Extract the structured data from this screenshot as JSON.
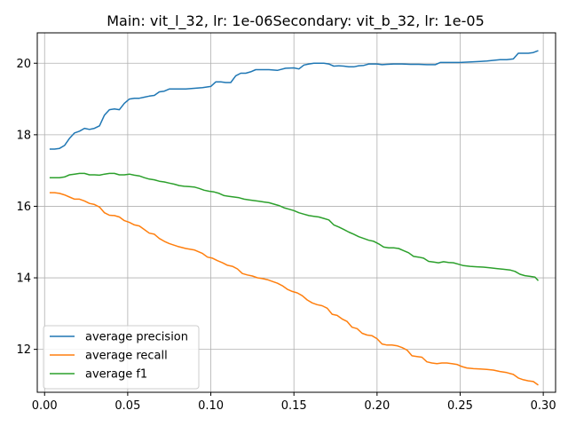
{
  "chart_data": {
    "type": "line",
    "title": "Main: vit_l_32, lr: 1e-06Secondary: vit_b_32, lr: 1e-05",
    "xlabel": "",
    "ylabel": "",
    "xlim": [
      -0.0044,
      0.3074
    ],
    "ylim": [
      10.8,
      20.85
    ],
    "xticks": [
      0.0,
      0.05,
      0.1,
      0.15,
      0.2,
      0.25,
      0.3
    ],
    "xtick_labels": [
      "0.00",
      "0.05",
      "0.10",
      "0.15",
      "0.20",
      "0.25",
      "0.30"
    ],
    "yticks": [
      12,
      14,
      16,
      18,
      20
    ],
    "ytick_labels": [
      "12",
      "14",
      "16",
      "18",
      "20"
    ],
    "grid": true,
    "legend_position": "lower-left",
    "series": [
      {
        "name": "average precision",
        "color": "#1f77b4",
        "points": [
          [
            0.003,
            17.6
          ],
          [
            0.006,
            17.6
          ],
          [
            0.009,
            17.62
          ],
          [
            0.012,
            17.7
          ],
          [
            0.015,
            17.9
          ],
          [
            0.018,
            18.05
          ],
          [
            0.021,
            18.1
          ],
          [
            0.024,
            18.18
          ],
          [
            0.027,
            18.15
          ],
          [
            0.03,
            18.18
          ],
          [
            0.033,
            18.25
          ],
          [
            0.036,
            18.55
          ],
          [
            0.039,
            18.7
          ],
          [
            0.042,
            18.72
          ],
          [
            0.045,
            18.7
          ],
          [
            0.048,
            18.88
          ],
          [
            0.051,
            19.0
          ],
          [
            0.054,
            19.02
          ],
          [
            0.057,
            19.02
          ],
          [
            0.06,
            19.05
          ],
          [
            0.063,
            19.08
          ],
          [
            0.066,
            19.1
          ],
          [
            0.069,
            19.2
          ],
          [
            0.072,
            19.22
          ],
          [
            0.075,
            19.28
          ],
          [
            0.08,
            19.28
          ],
          [
            0.085,
            19.28
          ],
          [
            0.09,
            19.3
          ],
          [
            0.095,
            19.32
          ],
          [
            0.1,
            19.35
          ],
          [
            0.103,
            19.48
          ],
          [
            0.106,
            19.48
          ],
          [
            0.109,
            19.46
          ],
          [
            0.112,
            19.46
          ],
          [
            0.115,
            19.65
          ],
          [
            0.118,
            19.72
          ],
          [
            0.121,
            19.72
          ],
          [
            0.124,
            19.76
          ],
          [
            0.127,
            19.82
          ],
          [
            0.13,
            19.82
          ],
          [
            0.135,
            19.82
          ],
          [
            0.14,
            19.8
          ],
          [
            0.145,
            19.86
          ],
          [
            0.15,
            19.87
          ],
          [
            0.153,
            19.84
          ],
          [
            0.156,
            19.95
          ],
          [
            0.159,
            19.98
          ],
          [
            0.162,
            20.0
          ],
          [
            0.165,
            20.0
          ],
          [
            0.168,
            20.0
          ],
          [
            0.171,
            19.98
          ],
          [
            0.174,
            19.92
          ],
          [
            0.177,
            19.93
          ],
          [
            0.18,
            19.92
          ],
          [
            0.183,
            19.9
          ],
          [
            0.186,
            19.9
          ],
          [
            0.189,
            19.93
          ],
          [
            0.192,
            19.94
          ],
          [
            0.195,
            19.98
          ],
          [
            0.2,
            19.98
          ],
          [
            0.203,
            19.96
          ],
          [
            0.206,
            19.97
          ],
          [
            0.21,
            19.98
          ],
          [
            0.215,
            19.98
          ],
          [
            0.22,
            19.97
          ],
          [
            0.225,
            19.97
          ],
          [
            0.23,
            19.96
          ],
          [
            0.235,
            19.96
          ],
          [
            0.238,
            20.02
          ],
          [
            0.242,
            20.02
          ],
          [
            0.246,
            20.02
          ],
          [
            0.25,
            20.02
          ],
          [
            0.254,
            20.03
          ],
          [
            0.258,
            20.04
          ],
          [
            0.262,
            20.05
          ],
          [
            0.266,
            20.06
          ],
          [
            0.27,
            20.08
          ],
          [
            0.274,
            20.1
          ],
          [
            0.278,
            20.1
          ],
          [
            0.282,
            20.12
          ],
          [
            0.285,
            20.28
          ],
          [
            0.288,
            20.28
          ],
          [
            0.291,
            20.28
          ],
          [
            0.294,
            20.3
          ],
          [
            0.297,
            20.35
          ]
        ]
      },
      {
        "name": "average recall",
        "color": "#ff7f0e",
        "points": [
          [
            0.003,
            16.38
          ],
          [
            0.006,
            16.38
          ],
          [
            0.009,
            16.36
          ],
          [
            0.012,
            16.32
          ],
          [
            0.015,
            16.26
          ],
          [
            0.018,
            16.2
          ],
          [
            0.021,
            16.2
          ],
          [
            0.024,
            16.15
          ],
          [
            0.027,
            16.08
          ],
          [
            0.03,
            16.05
          ],
          [
            0.033,
            15.98
          ],
          [
            0.036,
            15.82
          ],
          [
            0.039,
            15.75
          ],
          [
            0.042,
            15.74
          ],
          [
            0.045,
            15.7
          ],
          [
            0.048,
            15.6
          ],
          [
            0.051,
            15.55
          ],
          [
            0.054,
            15.48
          ],
          [
            0.057,
            15.45
          ],
          [
            0.06,
            15.35
          ],
          [
            0.063,
            15.25
          ],
          [
            0.066,
            15.22
          ],
          [
            0.069,
            15.1
          ],
          [
            0.072,
            15.02
          ],
          [
            0.075,
            14.96
          ],
          [
            0.08,
            14.88
          ],
          [
            0.085,
            14.82
          ],
          [
            0.09,
            14.78
          ],
          [
            0.095,
            14.68
          ],
          [
            0.098,
            14.58
          ],
          [
            0.101,
            14.55
          ],
          [
            0.104,
            14.48
          ],
          [
            0.107,
            14.42
          ],
          [
            0.11,
            14.35
          ],
          [
            0.113,
            14.32
          ],
          [
            0.116,
            14.25
          ],
          [
            0.119,
            14.12
          ],
          [
            0.122,
            14.08
          ],
          [
            0.125,
            14.05
          ],
          [
            0.128,
            14.0
          ],
          [
            0.131,
            13.98
          ],
          [
            0.134,
            13.95
          ],
          [
            0.137,
            13.9
          ],
          [
            0.14,
            13.85
          ],
          [
            0.143,
            13.78
          ],
          [
            0.146,
            13.68
          ],
          [
            0.149,
            13.62
          ],
          [
            0.152,
            13.58
          ],
          [
            0.155,
            13.5
          ],
          [
            0.158,
            13.38
          ],
          [
            0.161,
            13.3
          ],
          [
            0.164,
            13.25
          ],
          [
            0.167,
            13.22
          ],
          [
            0.17,
            13.15
          ],
          [
            0.173,
            12.98
          ],
          [
            0.176,
            12.95
          ],
          [
            0.179,
            12.85
          ],
          [
            0.182,
            12.78
          ],
          [
            0.185,
            12.62
          ],
          [
            0.188,
            12.58
          ],
          [
            0.191,
            12.45
          ],
          [
            0.194,
            12.4
          ],
          [
            0.197,
            12.38
          ],
          [
            0.2,
            12.3
          ],
          [
            0.203,
            12.15
          ],
          [
            0.206,
            12.12
          ],
          [
            0.209,
            12.12
          ],
          [
            0.212,
            12.1
          ],
          [
            0.215,
            12.05
          ],
          [
            0.218,
            11.98
          ],
          [
            0.221,
            11.82
          ],
          [
            0.224,
            11.8
          ],
          [
            0.227,
            11.78
          ],
          [
            0.23,
            11.65
          ],
          [
            0.233,
            11.62
          ],
          [
            0.236,
            11.6
          ],
          [
            0.239,
            11.62
          ],
          [
            0.242,
            11.62
          ],
          [
            0.245,
            11.6
          ],
          [
            0.248,
            11.58
          ],
          [
            0.251,
            11.52
          ],
          [
            0.254,
            11.48
          ],
          [
            0.258,
            11.46
          ],
          [
            0.262,
            11.45
          ],
          [
            0.266,
            11.44
          ],
          [
            0.27,
            11.42
          ],
          [
            0.274,
            11.38
          ],
          [
            0.278,
            11.35
          ],
          [
            0.282,
            11.3
          ],
          [
            0.285,
            11.2
          ],
          [
            0.288,
            11.15
          ],
          [
            0.291,
            11.12
          ],
          [
            0.294,
            11.1
          ],
          [
            0.297,
            11.0
          ]
        ]
      },
      {
        "name": "average f1",
        "color": "#2ca02c",
        "points": [
          [
            0.003,
            16.8
          ],
          [
            0.006,
            16.8
          ],
          [
            0.009,
            16.8
          ],
          [
            0.012,
            16.82
          ],
          [
            0.015,
            16.88
          ],
          [
            0.018,
            16.9
          ],
          [
            0.021,
            16.92
          ],
          [
            0.024,
            16.92
          ],
          [
            0.027,
            16.88
          ],
          [
            0.03,
            16.88
          ],
          [
            0.033,
            16.87
          ],
          [
            0.036,
            16.9
          ],
          [
            0.039,
            16.92
          ],
          [
            0.042,
            16.92
          ],
          [
            0.045,
            16.88
          ],
          [
            0.048,
            16.88
          ],
          [
            0.051,
            16.9
          ],
          [
            0.054,
            16.87
          ],
          [
            0.057,
            16.85
          ],
          [
            0.06,
            16.8
          ],
          [
            0.063,
            16.76
          ],
          [
            0.066,
            16.74
          ],
          [
            0.069,
            16.7
          ],
          [
            0.072,
            16.68
          ],
          [
            0.075,
            16.65
          ],
          [
            0.078,
            16.62
          ],
          [
            0.081,
            16.58
          ],
          [
            0.084,
            16.56
          ],
          [
            0.087,
            16.55
          ],
          [
            0.09,
            16.54
          ],
          [
            0.093,
            16.5
          ],
          [
            0.096,
            16.45
          ],
          [
            0.099,
            16.42
          ],
          [
            0.102,
            16.4
          ],
          [
            0.105,
            16.36
          ],
          [
            0.108,
            16.3
          ],
          [
            0.111,
            16.28
          ],
          [
            0.114,
            16.26
          ],
          [
            0.117,
            16.24
          ],
          [
            0.12,
            16.2
          ],
          [
            0.123,
            16.18
          ],
          [
            0.126,
            16.16
          ],
          [
            0.129,
            16.14
          ],
          [
            0.132,
            16.12
          ],
          [
            0.135,
            16.1
          ],
          [
            0.138,
            16.06
          ],
          [
            0.141,
            16.02
          ],
          [
            0.144,
            15.96
          ],
          [
            0.147,
            15.92
          ],
          [
            0.15,
            15.88
          ],
          [
            0.153,
            15.82
          ],
          [
            0.156,
            15.78
          ],
          [
            0.159,
            15.74
          ],
          [
            0.162,
            15.72
          ],
          [
            0.165,
            15.7
          ],
          [
            0.168,
            15.66
          ],
          [
            0.171,
            15.62
          ],
          [
            0.174,
            15.48
          ],
          [
            0.177,
            15.42
          ],
          [
            0.18,
            15.35
          ],
          [
            0.183,
            15.28
          ],
          [
            0.186,
            15.22
          ],
          [
            0.189,
            15.15
          ],
          [
            0.192,
            15.1
          ],
          [
            0.195,
            15.05
          ],
          [
            0.198,
            15.02
          ],
          [
            0.201,
            14.95
          ],
          [
            0.204,
            14.86
          ],
          [
            0.207,
            14.84
          ],
          [
            0.21,
            14.84
          ],
          [
            0.213,
            14.82
          ],
          [
            0.216,
            14.76
          ],
          [
            0.219,
            14.7
          ],
          [
            0.222,
            14.6
          ],
          [
            0.225,
            14.58
          ],
          [
            0.228,
            14.55
          ],
          [
            0.231,
            14.46
          ],
          [
            0.234,
            14.44
          ],
          [
            0.237,
            14.42
          ],
          [
            0.24,
            14.45
          ],
          [
            0.243,
            14.43
          ],
          [
            0.246,
            14.42
          ],
          [
            0.249,
            14.38
          ],
          [
            0.252,
            14.34
          ],
          [
            0.256,
            14.32
          ],
          [
            0.26,
            14.31
          ],
          [
            0.264,
            14.3
          ],
          [
            0.268,
            14.28
          ],
          [
            0.272,
            14.26
          ],
          [
            0.276,
            14.24
          ],
          [
            0.28,
            14.22
          ],
          [
            0.283,
            14.18
          ],
          [
            0.286,
            14.1
          ],
          [
            0.289,
            14.06
          ],
          [
            0.292,
            14.04
          ],
          [
            0.295,
            14.02
          ],
          [
            0.297,
            13.92
          ]
        ]
      }
    ]
  }
}
